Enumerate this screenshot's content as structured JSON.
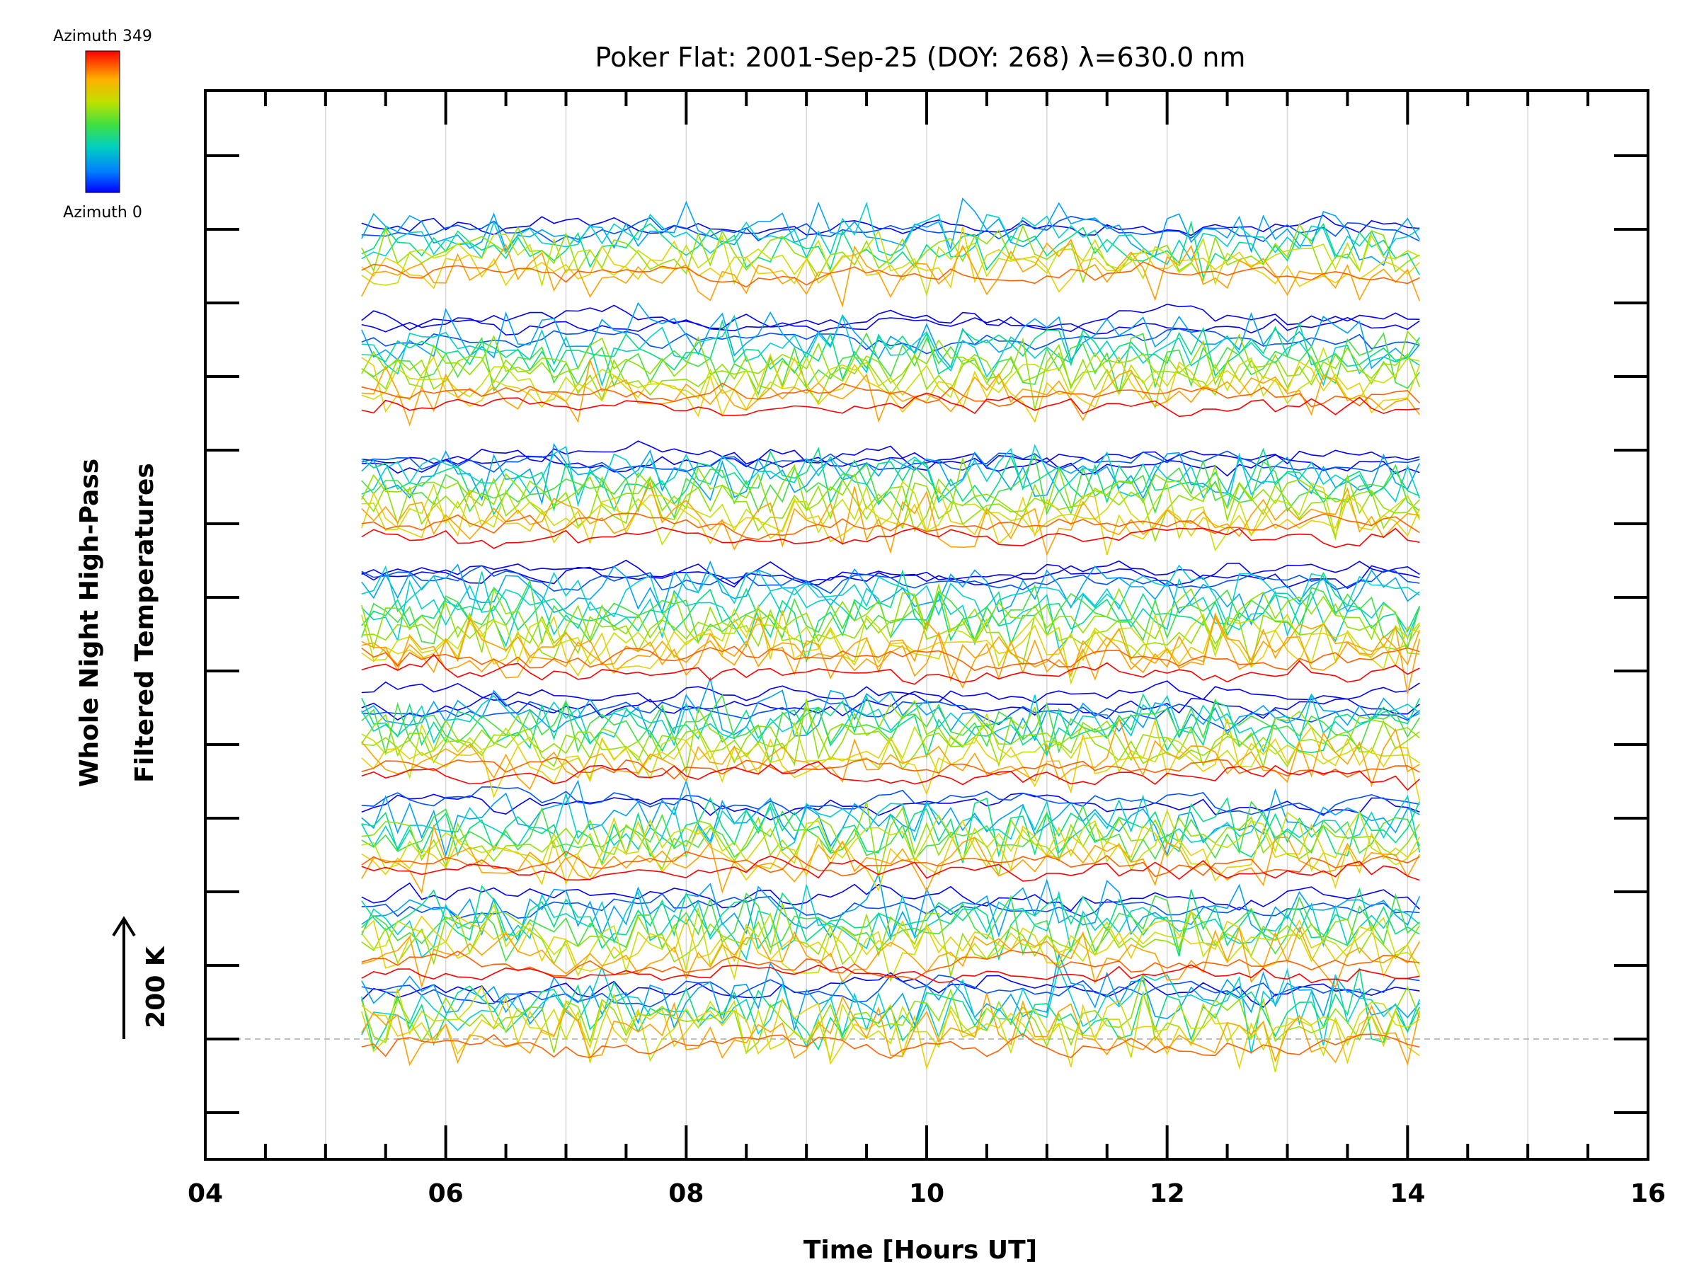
{
  "chart_data": {
    "type": "line",
    "title": "Poker Flat: 2001-Sep-25 (DOY: 268) λ=630.0 nm",
    "xlabel": "Time [Hours UT]",
    "ylabel": [
      "Whole Night High-Pass",
      "Filtered Temperatures"
    ],
    "xlim": [
      4,
      16
    ],
    "x_tick_labels": [
      "04",
      "06",
      "08",
      "10",
      "12",
      "14",
      "16"
    ],
    "scale_bar_label": "200 K",
    "colorbar": {
      "top_label": "Azimuth 349",
      "bottom_label": "Azimuth 0",
      "colors": [
        "#0000ff",
        "#00a0ff",
        "#00e0a0",
        "#40e040",
        "#c0e000",
        "#ffc000",
        "#ff6000",
        "#ff0000"
      ]
    },
    "grid": true,
    "time_range": [
      5.3,
      14.15
    ],
    "sample_step_hours": 0.1,
    "series_note": "",
    "series_seed": 268
  }
}
